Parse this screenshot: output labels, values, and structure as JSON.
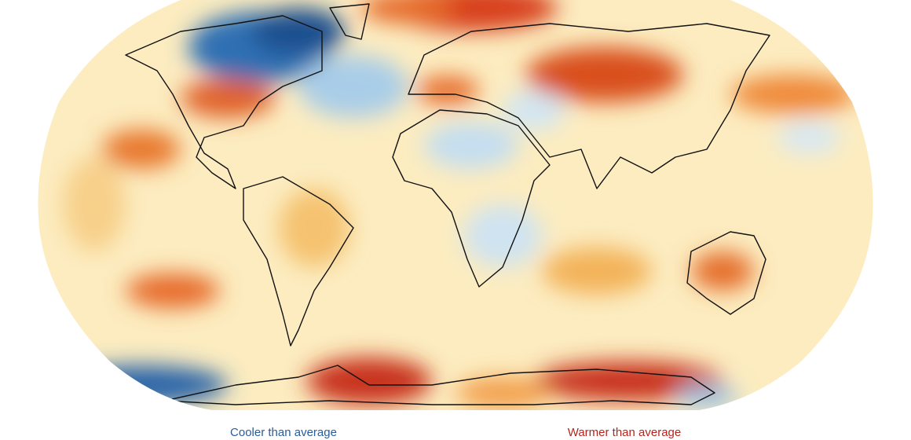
{
  "legend": {
    "cooler": "Cooler than average",
    "warmer": "Warmer than average"
  }
}
